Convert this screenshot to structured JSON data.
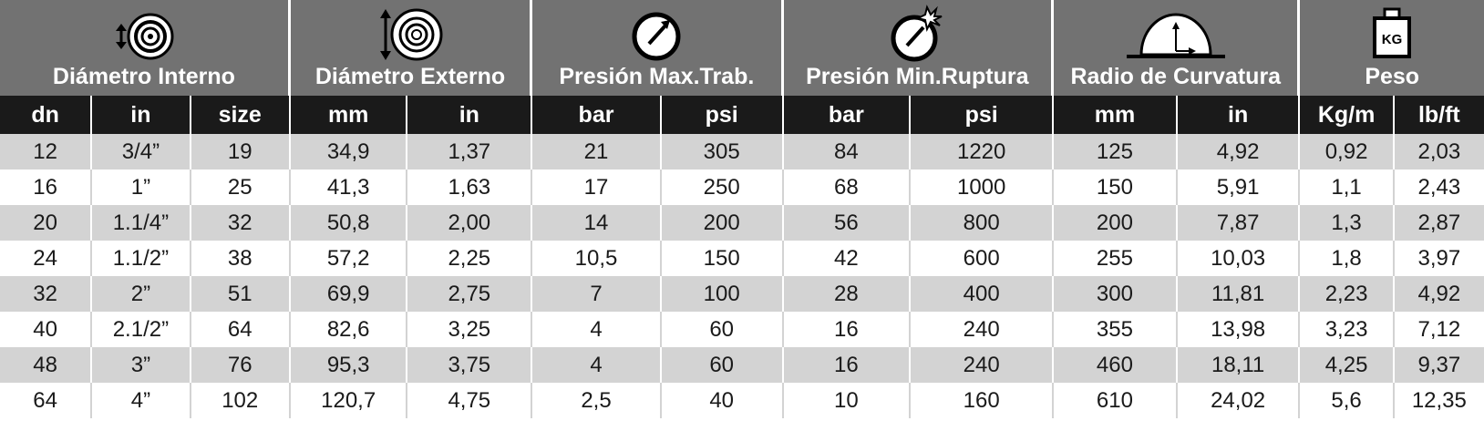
{
  "groups": [
    {
      "title": "Diámetro Interno",
      "icon": "inner-diameter-icon",
      "span": 3
    },
    {
      "title": "Diámetro Externo",
      "icon": "outer-diameter-icon",
      "span": 2
    },
    {
      "title": "Presión Max.Trab.",
      "icon": "pressure-gauge-icon",
      "span": 2
    },
    {
      "title": "Presión Min.Ruptura",
      "icon": "burst-gauge-icon",
      "span": 2
    },
    {
      "title": "Radio de Curvatura",
      "icon": "bend-radius-icon",
      "span": 2
    },
    {
      "title": "Peso",
      "icon": "weight-icon",
      "span": 2,
      "icon_text": "KG"
    }
  ],
  "units": [
    "dn",
    "in",
    "size",
    "mm",
    "in",
    "bar",
    "psi",
    "bar",
    "psi",
    "mm",
    "in",
    "Kg/m",
    "lb/ft"
  ],
  "rows": [
    [
      "12",
      "3/4”",
      "19",
      "34,9",
      "1,37",
      "21",
      "305",
      "84",
      "1220",
      "125",
      "4,92",
      "0,92",
      "2,03"
    ],
    [
      "16",
      "1”",
      "25",
      "41,3",
      "1,63",
      "17",
      "250",
      "68",
      "1000",
      "150",
      "5,91",
      "1,1",
      "2,43"
    ],
    [
      "20",
      "1.1/4”",
      "32",
      "50,8",
      "2,00",
      "14",
      "200",
      "56",
      "800",
      "200",
      "7,87",
      "1,3",
      "2,87"
    ],
    [
      "24",
      "1.1/2”",
      "38",
      "57,2",
      "2,25",
      "10,5",
      "150",
      "42",
      "600",
      "255",
      "10,03",
      "1,8",
      "3,97"
    ],
    [
      "32",
      "2”",
      "51",
      "69,9",
      "2,75",
      "7",
      "100",
      "28",
      "400",
      "300",
      "11,81",
      "2,23",
      "4,92"
    ],
    [
      "40",
      "2.1/2”",
      "64",
      "82,6",
      "3,25",
      "4",
      "60",
      "16",
      "240",
      "355",
      "13,98",
      "3,23",
      "7,12"
    ],
    [
      "48",
      "3”",
      "76",
      "95,3",
      "3,75",
      "4",
      "60",
      "16",
      "240",
      "460",
      "18,11",
      "4,25",
      "9,37"
    ],
    [
      "64",
      "4”",
      "102",
      "120,7",
      "4,75",
      "2,5",
      "40",
      "10",
      "160",
      "610",
      "24,02",
      "5,6",
      "12,35"
    ]
  ],
  "colors": {
    "group_header": "#727272",
    "unit_header": "#1a1a1a",
    "stripe": "#d3d3d3"
  }
}
